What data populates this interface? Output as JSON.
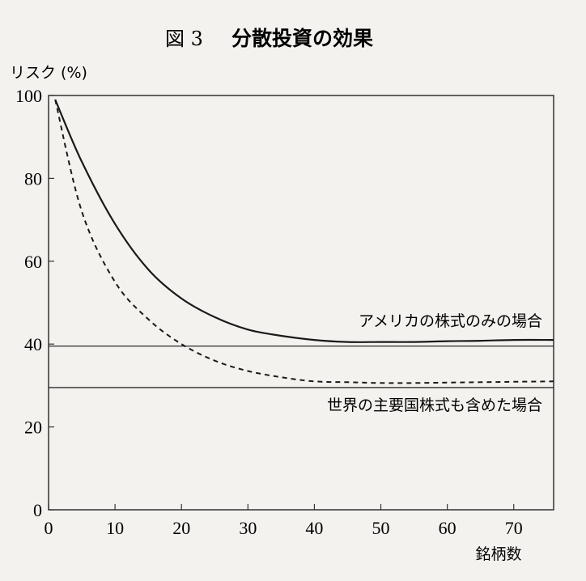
{
  "figure": {
    "label": "図 3",
    "title": "分散投資の効果"
  },
  "chart_data": {
    "type": "line",
    "title": "分散投資の効果",
    "ylabel": "リスク (%)",
    "xlabel": "銘柄数",
    "xlim": [
      0,
      76
    ],
    "ylim": [
      0,
      100
    ],
    "x_ticks": [
      0,
      10,
      20,
      30,
      40,
      50,
      60,
      70
    ],
    "y_ticks": [
      0,
      20,
      40,
      60,
      80,
      100
    ],
    "grid": false,
    "series": [
      {
        "name": "アメリカの株式のみの場合",
        "style": "solid",
        "color": "#1a1a1a",
        "x": [
          1,
          5,
          10,
          15,
          20,
          25,
          30,
          35,
          40,
          45,
          50,
          55,
          60,
          65,
          70,
          76
        ],
        "y": [
          99,
          84,
          69,
          58,
          51,
          46.5,
          43.5,
          42,
          41,
          40.5,
          40.5,
          40.5,
          40.7,
          40.8,
          41,
          41
        ]
      },
      {
        "name": "世界の主要国株式も含めた場合",
        "style": "dashed",
        "color": "#1a1a1a",
        "x": [
          1,
          5,
          10,
          15,
          20,
          25,
          30,
          35,
          40,
          45,
          50,
          55,
          60,
          65,
          70,
          76
        ],
        "y": [
          99,
          72,
          55,
          46,
          40,
          36,
          33.5,
          32,
          31,
          30.8,
          30.6,
          30.6,
          30.7,
          30.8,
          30.9,
          31
        ]
      }
    ],
    "reference_lines": [
      {
        "y": 39.5
      },
      {
        "y": 29.5
      }
    ]
  }
}
